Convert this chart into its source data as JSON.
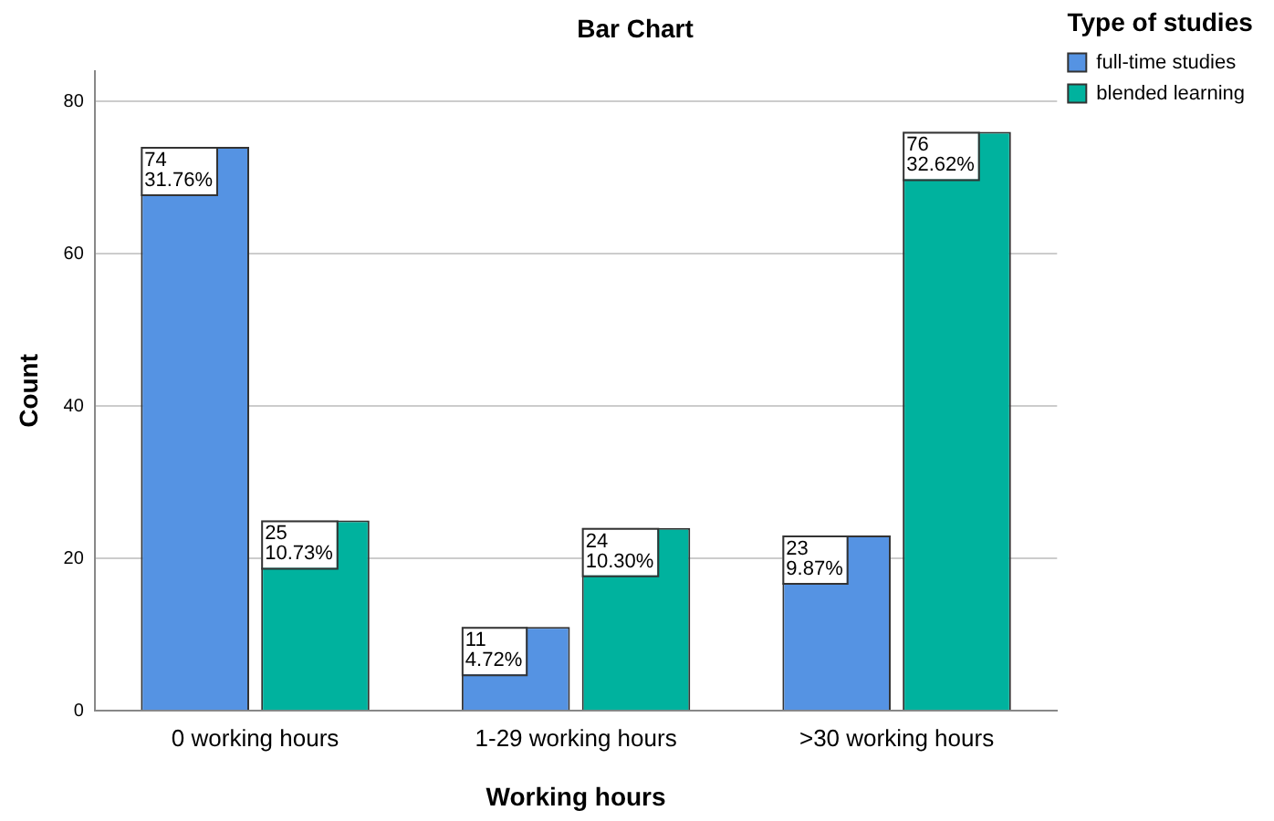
{
  "chart_data": {
    "type": "bar",
    "title": "Bar Chart",
    "xlabel": "Working hours",
    "ylabel": "Count",
    "legend_title": "Type of studies",
    "categories": [
      "0 working hours",
      "1-29 working hours",
      ">30 working hours"
    ],
    "series": [
      {
        "name": "full-time studies",
        "color": "#5593e3",
        "values": [
          74,
          11,
          23
        ],
        "value_labels": [
          "74\n31.76%",
          "11\n4.72%",
          "23\n9.87%"
        ]
      },
      {
        "name": "blended learning",
        "color": "#00b29e",
        "values": [
          25,
          24,
          76
        ],
        "value_labels": [
          "25\n10.73%",
          "24\n10.30%",
          "76\n32.62%"
        ]
      }
    ],
    "ylim": [
      0,
      84
    ],
    "yticks": [
      0,
      20,
      40,
      60,
      80
    ],
    "grid": "y",
    "legend": "top right"
  }
}
